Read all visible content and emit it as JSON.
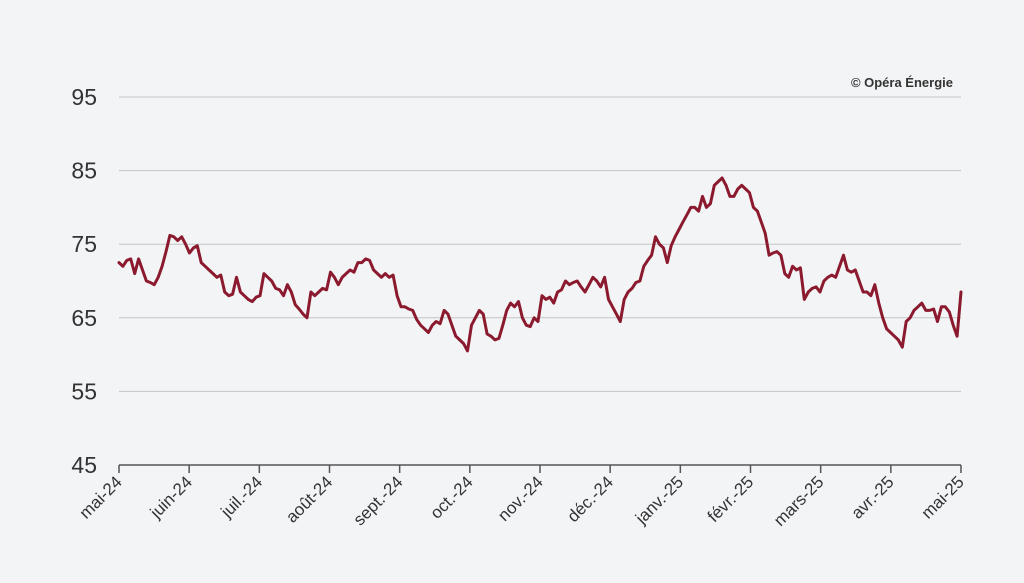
{
  "credit": "© Opéra Énergie",
  "colors": {
    "line": "#8b1a2e",
    "grid": "#c4c4c4",
    "axis": "#555555",
    "text": "#333333",
    "background": "#f3f4f6"
  },
  "chart_data": {
    "type": "line",
    "title": "",
    "xlabel": "",
    "ylabel": "",
    "ylim": [
      45,
      95
    ],
    "y_ticks": [
      45,
      55,
      65,
      75,
      85,
      95
    ],
    "x_ticks": [
      "mai-24",
      "juin-24",
      "juil.-24",
      "août-24",
      "sept.-24",
      "oct.-24",
      "nov.-24",
      "déc.-24",
      "janv.-25",
      "févr.-25",
      "mars-25",
      "avr.-25",
      "mai-25"
    ],
    "grid": "horizontal",
    "series": [
      {
        "name": "",
        "values": [
          72.5,
          72,
          72.8,
          73,
          71,
          73,
          71.5,
          70,
          69.8,
          69.5,
          70.5,
          72,
          74,
          76.2,
          76,
          75.5,
          76,
          75,
          73.8,
          74.5,
          74.8,
          72.5,
          72,
          71.5,
          71,
          70.5,
          70.8,
          68.5,
          68,
          68.2,
          70.5,
          68.5,
          68,
          67.5,
          67.2,
          67.8,
          68,
          71,
          70.5,
          70,
          69,
          68.8,
          68,
          69.5,
          68.5,
          66.8,
          66.2,
          65.5,
          65,
          68.5,
          68,
          68.5,
          69,
          68.8,
          71.2,
          70.5,
          69.5,
          70.5,
          71,
          71.5,
          71.2,
          72.5,
          72.5,
          73,
          72.8,
          71.5,
          71,
          70.5,
          71,
          70.5,
          70.8,
          68,
          66.5,
          66.5,
          66.2,
          66,
          64.8,
          64,
          63.5,
          63,
          64,
          64.5,
          64.2,
          66,
          65.5,
          64,
          62.5,
          62,
          61.5,
          60.5,
          64,
          65,
          66,
          65.5,
          62.8,
          62.5,
          62,
          62.2,
          64,
          66,
          67,
          66.5,
          67.2,
          65,
          64,
          63.8,
          65,
          64.5,
          68,
          67.5,
          67.8,
          67,
          68.5,
          68.8,
          70,
          69.5,
          69.8,
          70,
          69.2,
          68.5,
          69.5,
          70.5,
          70,
          69.2,
          70.5,
          67.5,
          66.5,
          65.5,
          64.5,
          67.5,
          68.5,
          69,
          69.8,
          70,
          72,
          72.8,
          73.5,
          76,
          75,
          74.5,
          72.5,
          74.8,
          76,
          77,
          78,
          79,
          80,
          80,
          79.5,
          81.5,
          80,
          80.5,
          83,
          83.5,
          84,
          83,
          81.5,
          81.5,
          82.5,
          83,
          82.5,
          82,
          80,
          79.5,
          78,
          76.5,
          73.5,
          73.8,
          74,
          73.5,
          71,
          70.5,
          72,
          71.5,
          71.8,
          67.5,
          68.5,
          69,
          69.2,
          68.5,
          70,
          70.5,
          70.8,
          70.5,
          72,
          73.5,
          71.5,
          71.2,
          71.5,
          70,
          68.5,
          68.5,
          68,
          69.5,
          67,
          65,
          63.5,
          63,
          62.5,
          62,
          61,
          64.5,
          65,
          66,
          66.5,
          67,
          66,
          66,
          66.2,
          64.5,
          66.5,
          66.5,
          65.8,
          64,
          62.5,
          68.5
        ]
      }
    ]
  }
}
